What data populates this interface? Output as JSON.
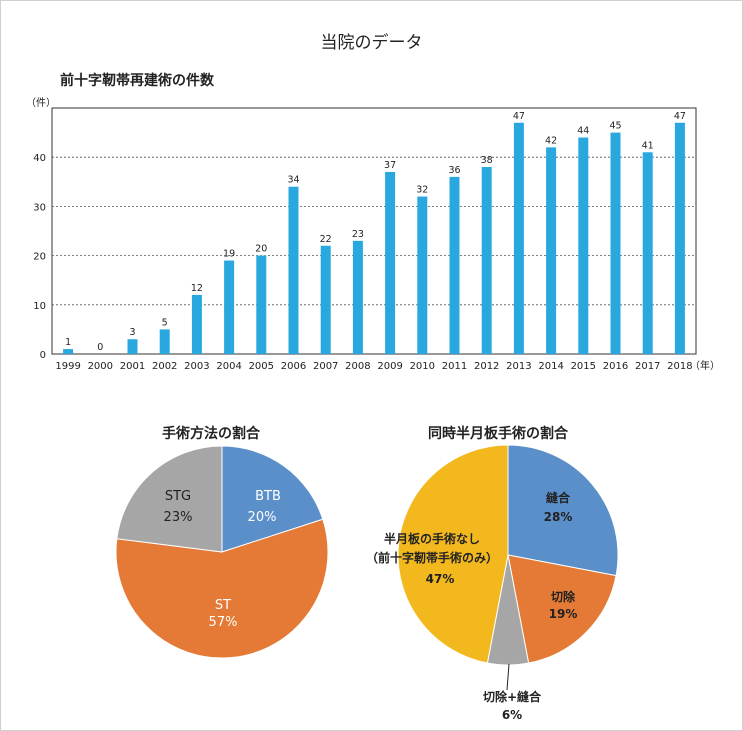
{
  "page": {
    "title": "当院のデータ"
  },
  "chart_data": [
    {
      "type": "bar",
      "title": "前十字靭帯再建術の件数",
      "y_unit": "（件）",
      "x_unit": "（年）",
      "categories": [
        "1999",
        "2000",
        "2001",
        "2002",
        "2003",
        "2004",
        "2005",
        "2006",
        "2007",
        "2008",
        "2009",
        "2010",
        "2011",
        "2012",
        "2013",
        "2014",
        "2015",
        "2016",
        "2017",
        "2018"
      ],
      "values": [
        1,
        0,
        3,
        5,
        12,
        19,
        20,
        34,
        22,
        23,
        37,
        32,
        36,
        38,
        47,
        42,
        44,
        45,
        41,
        47
      ],
      "ylim": [
        0,
        50
      ],
      "yticks": [
        "0",
        "10",
        "20",
        "30",
        "40"
      ],
      "grid": "dashed horizontal",
      "color": "#29a8e0"
    },
    {
      "type": "pie",
      "title": "手術方法の割合",
      "slices": [
        {
          "label": "BTB",
          "pct_label": "20%",
          "value": 20,
          "color": "#5b8fc9"
        },
        {
          "label": "ST",
          "pct_label": "57%",
          "value": 57,
          "color": "#e47a35"
        },
        {
          "label": "STG",
          "pct_label": "23%",
          "value": 23,
          "color": "#a6a6a6"
        }
      ]
    },
    {
      "type": "pie",
      "title": "同時半月板手術の割合",
      "slices": [
        {
          "label": "縫合",
          "pct_label": "28%",
          "value": 28,
          "color": "#5b8fc9"
        },
        {
          "label": "切除",
          "pct_label": "19%",
          "value": 19,
          "color": "#e47a35"
        },
        {
          "label": "切除+縫合",
          "pct_label": "6%",
          "value": 6,
          "color": "#a6a6a6"
        },
        {
          "label": "半月板の手術なし",
          "label2": "（前十字靭帯手術のみ）",
          "pct_label": "47%",
          "value": 47,
          "color": "#f2b81e"
        }
      ]
    }
  ]
}
